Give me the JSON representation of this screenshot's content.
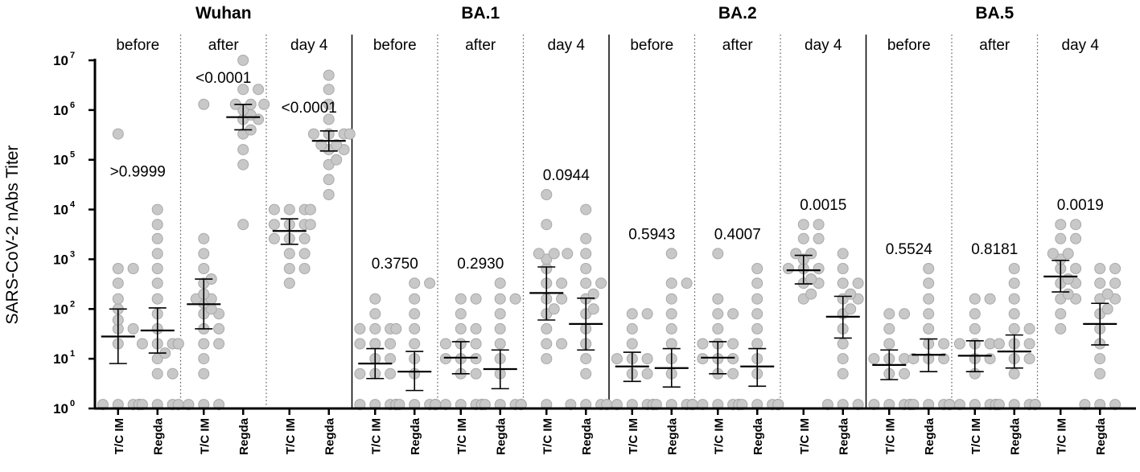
{
  "chart_data": {
    "type": "scatter",
    "ylabel": "SARS-CoV-2 nAbs Titer",
    "yscale": "log10",
    "ylim": [
      1,
      10000000
    ],
    "yticks": [
      {
        "value": 1,
        "base": "10",
        "exp": "0"
      },
      {
        "value": 10,
        "base": "10",
        "exp": "1"
      },
      {
        "value": 100,
        "base": "10",
        "exp": "2"
      },
      {
        "value": 1000,
        "base": "10",
        "exp": "3"
      },
      {
        "value": 10000,
        "base": "10",
        "exp": "4"
      },
      {
        "value": 100000,
        "base": "10",
        "exp": "5"
      },
      {
        "value": 1000000,
        "base": "10",
        "exp": "6"
      },
      {
        "value": 10000000,
        "base": "10",
        "exp": "7"
      }
    ],
    "group_labels": [
      "T/C IM",
      "Regda"
    ],
    "variants": [
      {
        "name": "Wuhan",
        "panels": [
          {
            "time": "before",
            "p": ">0.9999",
            "groups": [
              {
                "mean": 28,
                "lo": 8,
                "hi": 100,
                "points": [
                  1.2,
                  1.2,
                  1.2,
                  1.2,
                  1.2,
                  1.2,
                  1.2,
                  1.2,
                  20,
                  40,
                  40,
                  60,
                  100,
                  160,
                  330,
                  650,
                  650,
                  330000
                ]
              },
              {
                "mean": 37,
                "lo": 13,
                "hi": 105,
                "points": [
                  1.2,
                  1.2,
                  1.2,
                  1.2,
                  5,
                  5,
                  10,
                  13,
                  20,
                  20,
                  20,
                  20,
                  20,
                  20,
                  40,
                  80,
                  160,
                  330,
                  650,
                  1300,
                  2600,
                  5000,
                  10000
                ]
              }
            ]
          },
          {
            "time": "after",
            "p": "<0.0001",
            "groups": [
              {
                "mean": 125,
                "lo": 40,
                "hi": 400,
                "points": [
                  1.2,
                  1.2,
                  1.2,
                  5,
                  10,
                  20,
                  20,
                  40,
                  40,
                  80,
                  80,
                  100,
                  130,
                  160,
                  160,
                  200,
                  330,
                  400,
                  650,
                  1300,
                  2600,
                  1300000
                ]
              },
              {
                "mean": 720000,
                "lo": 400000,
                "hi": 1300000,
                "points": [
                  5000,
                  80000,
                  160000,
                  330000,
                  400000,
                  650000,
                  650000,
                  800000,
                  1000000,
                  1300000,
                  1300000,
                  1300000,
                  2600000,
                  2600000,
                  10000000
                ]
              }
            ]
          },
          {
            "time": "day 4",
            "p": "<0.0001",
            "groups": [
              {
                "mean": 3700,
                "lo": 2000,
                "hi": 6500,
                "points": [
                  330,
                  650,
                  650,
                  1300,
                  1300,
                  2600,
                  2600,
                  2600,
                  5000,
                  5000,
                  5000,
                  5000,
                  10000,
                  10000,
                  10000,
                  10000,
                  10000
                ]
              },
              {
                "mean": 240000,
                "lo": 150000,
                "hi": 380000,
                "points": [
                  20000,
                  40000,
                  80000,
                  100000,
                  160000,
                  160000,
                  200000,
                  200000,
                  330000,
                  330000,
                  330000,
                  330000,
                  650000,
                  1300000,
                  2600000,
                  5000000
                ]
              }
            ]
          }
        ]
      },
      {
        "name": "BA.1",
        "panels": [
          {
            "time": "before",
            "p": "0.3750",
            "groups": [
              {
                "mean": 8,
                "lo": 4,
                "hi": 16,
                "points": [
                  1.2,
                  1.2,
                  1.2,
                  1.2,
                  1.2,
                  1.2,
                  1.2,
                  1.2,
                  5,
                  5,
                  5,
                  10,
                  10,
                  20,
                  20,
                  20,
                  40,
                  40,
                  40,
                  40,
                  80,
                  160
                ]
              },
              {
                "mean": 5.5,
                "lo": 2.3,
                "hi": 14,
                "points": [
                  1.2,
                  1.2,
                  1.2,
                  1.2,
                  1.2,
                  1.2,
                  1.2,
                  1.2,
                  1.2,
                  5,
                  10,
                  20,
                  40,
                  80,
                  160,
                  330,
                  330
                ]
              }
            ]
          },
          {
            "time": "after",
            "p": "0.2930",
            "groups": [
              {
                "mean": 10.5,
                "lo": 5,
                "hi": 22,
                "points": [
                  1.2,
                  1.2,
                  1.2,
                  1.2,
                  1.2,
                  1.2,
                  1.2,
                  1.2,
                  5,
                  5,
                  10,
                  10,
                  10,
                  20,
                  20,
                  20,
                  40,
                  40,
                  80,
                  160,
                  160
                ]
              },
              {
                "mean": 6.2,
                "lo": 2.5,
                "hi": 15,
                "points": [
                  1.2,
                  1.2,
                  1.2,
                  1.2,
                  1.2,
                  1.2,
                  1.2,
                  1.2,
                  1.2,
                  5,
                  10,
                  20,
                  40,
                  80,
                  160,
                  160,
                  330
                ]
              }
            ]
          },
          {
            "time": "day 4",
            "p": "0.0944",
            "groups": [
              {
                "mean": 210,
                "lo": 60,
                "hi": 700,
                "points": [
                  1.2,
                  10,
                  20,
                  20,
                  40,
                  80,
                  100,
                  160,
                  160,
                  330,
                  330,
                  650,
                  1000,
                  1300,
                  1300,
                  1300,
                  5000,
                  20000
                ]
              },
              {
                "mean": 50,
                "lo": 15,
                "hi": 165,
                "points": [
                  1.2,
                  1.2,
                  1.2,
                  1.2,
                  1.2,
                  5,
                  10,
                  20,
                  40,
                  80,
                  100,
                  160,
                  200,
                  330,
                  330,
                  650,
                  1300,
                  2600,
                  10000
                ]
              }
            ]
          }
        ]
      },
      {
        "name": "BA.2",
        "panels": [
          {
            "time": "before",
            "p": "0.5943",
            "groups": [
              {
                "mean": 7,
                "lo": 3.5,
                "hi": 13.5,
                "points": [
                  1.2,
                  1.2,
                  1.2,
                  1.2,
                  1.2,
                  1.2,
                  1.2,
                  1.2,
                  5,
                  5,
                  10,
                  10,
                  10,
                  20,
                  40,
                  80,
                  80
                ]
              },
              {
                "mean": 6.5,
                "lo": 2.7,
                "hi": 16,
                "points": [
                  1.2,
                  1.2,
                  1.2,
                  1.2,
                  1.2,
                  1.2,
                  1.2,
                  1.2,
                  5,
                  10,
                  20,
                  40,
                  80,
                  160,
                  330,
                  330,
                  1300
                ]
              }
            ]
          },
          {
            "time": "after",
            "p": "0.4007",
            "groups": [
              {
                "mean": 10.5,
                "lo": 5,
                "hi": 22,
                "points": [
                  1.2,
                  1.2,
                  1.2,
                  1.2,
                  1.2,
                  1.2,
                  1.2,
                  1.2,
                  5,
                  5,
                  10,
                  10,
                  10,
                  20,
                  20,
                  20,
                  40,
                  80,
                  80,
                  160,
                  1300
                ]
              },
              {
                "mean": 7,
                "lo": 2.8,
                "hi": 16,
                "points": [
                  1.2,
                  1.2,
                  1.2,
                  1.2,
                  1.2,
                  1.2,
                  1.2,
                  1.2,
                  5,
                  10,
                  20,
                  40,
                  80,
                  160,
                  330,
                  650
                ]
              }
            ]
          },
          {
            "time": "day 4",
            "p": "0.0015",
            "groups": [
              {
                "mean": 600,
                "lo": 320,
                "hi": 1200,
                "points": [
                  160,
                  200,
                  330,
                  330,
                  400,
                  650,
                  650,
                  650,
                  1000,
                  1300,
                  1300,
                  2600,
                  2600,
                  5000,
                  5000
                ]
              },
              {
                "mean": 70,
                "lo": 26,
                "hi": 180,
                "points": [
                  1.2,
                  1.2,
                  1.2,
                  5,
                  10,
                  20,
                  40,
                  80,
                  100,
                  160,
                  160,
                  200,
                  330,
                  330,
                  650,
                  1300
                ]
              }
            ]
          }
        ]
      },
      {
        "name": "BA.5",
        "panels": [
          {
            "time": "before",
            "p": "0.5524",
            "groups": [
              {
                "mean": 7.5,
                "lo": 3.8,
                "hi": 15,
                "points": [
                  1.2,
                  1.2,
                  1.2,
                  1.2,
                  1.2,
                  1.2,
                  1.2,
                  1.2,
                  5,
                  5,
                  10,
                  10,
                  10,
                  20,
                  40,
                  80,
                  80
                ]
              },
              {
                "mean": 12,
                "lo": 5.5,
                "hi": 25,
                "points": [
                  1.2,
                  1.2,
                  1.2,
                  1.2,
                  1.2,
                  1.2,
                  1.2,
                  1.2,
                  10,
                  10,
                  10,
                  20,
                  20,
                  40,
                  80,
                  160,
                  330,
                  650
                ]
              }
            ]
          },
          {
            "time": "after",
            "p": "0.8181",
            "groups": [
              {
                "mean": 11.5,
                "lo": 5.5,
                "hi": 23,
                "points": [
                  1.2,
                  1.2,
                  1.2,
                  1.2,
                  1.2,
                  1.2,
                  1.2,
                  1.2,
                  5,
                  10,
                  10,
                  20,
                  20,
                  20,
                  40,
                  80,
                  160,
                  160
                ]
              },
              {
                "mean": 14,
                "lo": 6.5,
                "hi": 30,
                "points": [
                  1.2,
                  1.2,
                  1.2,
                  1.2,
                  1.2,
                  1.2,
                  1.2,
                  5,
                  10,
                  10,
                  20,
                  20,
                  20,
                  40,
                  40,
                  80,
                  160,
                  330,
                  650
                ]
              }
            ]
          },
          {
            "time": "day 4",
            "p": "0.0019",
            "groups": [
              {
                "mean": 450,
                "lo": 220,
                "hi": 950,
                "points": [
                  40,
                  80,
                  160,
                  160,
                  200,
                  330,
                  330,
                  400,
                  650,
                  650,
                  1000,
                  1300,
                  1300,
                  2600,
                  2600,
                  5000,
                  5000
                ]
              },
              {
                "mean": 50,
                "lo": 19,
                "hi": 130,
                "points": [
                  1.2,
                  1.2,
                  1.2,
                  5,
                  10,
                  20,
                  40,
                  80,
                  100,
                  160,
                  160,
                  200,
                  330,
                  330,
                  650,
                  650
                ]
              }
            ]
          }
        ]
      }
    ]
  },
  "colors": {
    "point_fill": "#c8c8c8",
    "point_stroke": "#a9a9a9",
    "axis": "#000000",
    "bar": "#000000",
    "dotted_divider": "#555555"
  }
}
